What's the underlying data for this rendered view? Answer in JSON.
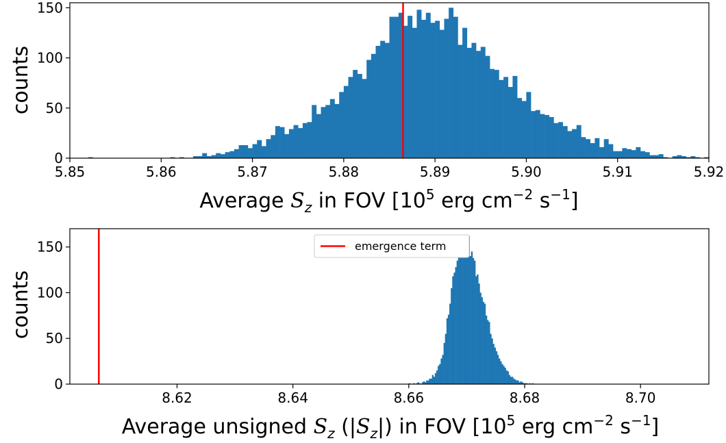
{
  "chart_data": [
    {
      "type": "bar",
      "xlabel": "Average S_z in FOV [10^5 erg cm^-2 s^-1]",
      "xlabel_parts": {
        "pre": "Average ",
        "var": "S",
        "sub": "z",
        "mid": " in FOV [10",
        "exp1": "5",
        "unit1": " erg cm",
        "exp2": "−2",
        "unit2": " s",
        "exp3": "−1",
        "post": "]"
      },
      "ylabel": "counts",
      "xlim": [
        5.85,
        5.92
      ],
      "ylim": [
        0,
        155
      ],
      "xticks": [
        5.85,
        5.86,
        5.87,
        5.88,
        5.89,
        5.9,
        5.91,
        5.92
      ],
      "xtick_labels": [
        "5.85",
        "5.86",
        "5.87",
        "5.88",
        "5.89",
        "5.90",
        "5.91",
        "5.92"
      ],
      "yticks": [
        0,
        50,
        100,
        150
      ],
      "ytick_labels": [
        "0",
        "50",
        "100",
        "150"
      ],
      "bar_color": "#1f77b4",
      "bin_start": 5.85,
      "bin_width": 0.0005,
      "values": [
        0,
        0,
        0,
        0,
        1,
        0,
        0,
        0,
        0,
        0,
        0,
        0,
        0,
        0,
        0,
        0,
        0,
        0,
        0,
        0,
        0,
        0,
        1,
        0,
        1,
        0,
        0,
        2,
        2,
        5,
        2,
        3,
        5,
        4,
        6,
        7,
        9,
        13,
        13,
        10,
        14,
        18,
        12,
        19,
        23,
        32,
        31,
        24,
        29,
        33,
        30,
        35,
        36,
        53,
        44,
        51,
        53,
        59,
        54,
        66,
        72,
        81,
        88,
        84,
        79,
        98,
        104,
        112,
        117,
        115,
        141,
        141,
        145,
        132,
        142,
        130,
        148,
        138,
        145,
        135,
        137,
        128,
        139,
        150,
        141,
        113,
        130,
        110,
        115,
        107,
        111,
        102,
        89,
        88,
        78,
        81,
        71,
        82,
        60,
        57,
        66,
        47,
        48,
        44,
        43,
        41,
        35,
        36,
        32,
        27,
        29,
        33,
        21,
        19,
        15,
        20,
        11,
        19,
        14,
        7,
        7,
        10,
        9,
        8,
        11,
        7,
        6,
        3,
        3,
        4,
        1,
        0,
        2,
        3,
        2,
        1,
        2,
        1,
        0,
        1
      ],
      "vline": {
        "x": 5.8865,
        "color": "#ff0000"
      }
    },
    {
      "type": "bar",
      "xlabel": "Average unsigned S_z (|S_z|) in FOV [10^5 erg cm^-2 s^-1]",
      "xlabel_parts": {
        "pre": "Average unsigned ",
        "var1": "S",
        "sub1": "z",
        "paren_open": " (|",
        "var2": "S",
        "sub2": "z",
        "paren_close": "|) in FOV [10",
        "exp1": "5",
        "unit1": " erg cm",
        "exp2": "−2",
        "unit2": " s",
        "exp3": "−1",
        "post": "]"
      },
      "ylabel": "counts",
      "xlim": [
        8.6015,
        8.7118
      ],
      "ylim": [
        0,
        170
      ],
      "xticks": [
        8.62,
        8.64,
        8.66,
        8.68,
        8.7
      ],
      "xtick_labels": [
        "8.62",
        "8.64",
        "8.66",
        "8.68",
        "8.70"
      ],
      "yticks": [
        0,
        50,
        100,
        150
      ],
      "ytick_labels": [
        "0",
        "50",
        "100",
        "150"
      ],
      "bar_color": "#1f77b4",
      "bin_start": 8.66,
      "bin_width": 0.00025,
      "values": [
        1,
        0,
        0,
        1,
        0,
        1,
        2,
        1,
        0,
        2,
        3,
        2,
        4,
        4,
        6,
        6,
        10,
        8,
        12,
        15,
        20,
        22,
        28,
        32,
        45,
        55,
        72,
        76,
        88,
        105,
        118,
        122,
        128,
        135,
        142,
        148,
        140,
        148,
        155,
        160,
        150,
        162,
        140,
        145,
        138,
        135,
        118,
        120,
        110,
        100,
        95,
        90,
        88,
        75,
        70,
        68,
        55,
        50,
        44,
        40,
        36,
        32,
        28,
        25,
        22,
        20,
        18,
        15,
        14,
        10,
        8,
        8,
        6,
        5,
        4,
        4,
        2,
        3,
        2,
        1,
        1,
        1,
        0,
        1,
        0,
        1
      ],
      "vline": {
        "x": 8.6065,
        "color": "#ff0000"
      },
      "legend": {
        "position": "top-center",
        "entries": [
          {
            "label": "emergence term",
            "color": "#ff0000",
            "kind": "line"
          }
        ]
      }
    }
  ]
}
